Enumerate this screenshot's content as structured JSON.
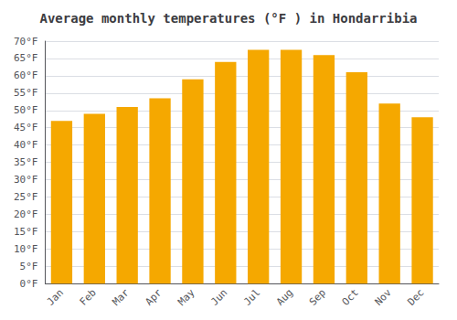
{
  "chart_data": {
    "type": "bar",
    "title": "Average monthly temperatures (°F ) in Hondarribia",
    "categories": [
      "Jan",
      "Feb",
      "Mar",
      "Apr",
      "May",
      "Jun",
      "Jul",
      "Aug",
      "Sep",
      "Oct",
      "Nov",
      "Dec"
    ],
    "values": [
      47,
      49,
      51,
      53.5,
      59,
      64,
      67.5,
      67.5,
      66,
      61,
      52,
      48
    ],
    "color": "#F5A800",
    "ylim": [
      0,
      70
    ],
    "yticks": [
      {
        "value": 0,
        "label": "0°F"
      },
      {
        "value": 5,
        "label": "5°F"
      },
      {
        "value": 10,
        "label": "10°F"
      },
      {
        "value": 15,
        "label": "15°F"
      },
      {
        "value": 20,
        "label": "20°F"
      },
      {
        "value": 25,
        "label": "25°F"
      },
      {
        "value": 30,
        "label": "30°F"
      },
      {
        "value": 35,
        "label": "35°F"
      },
      {
        "value": 40,
        "label": "40°F"
      },
      {
        "value": 45,
        "label": "45°F"
      },
      {
        "value": 50,
        "label": "50°F"
      },
      {
        "value": 55,
        "label": "55°F"
      },
      {
        "value": 60,
        "label": "60°F"
      },
      {
        "value": 65,
        "label": "65°F"
      },
      {
        "value": 70,
        "label": "70°F"
      }
    ],
    "grid": true
  }
}
